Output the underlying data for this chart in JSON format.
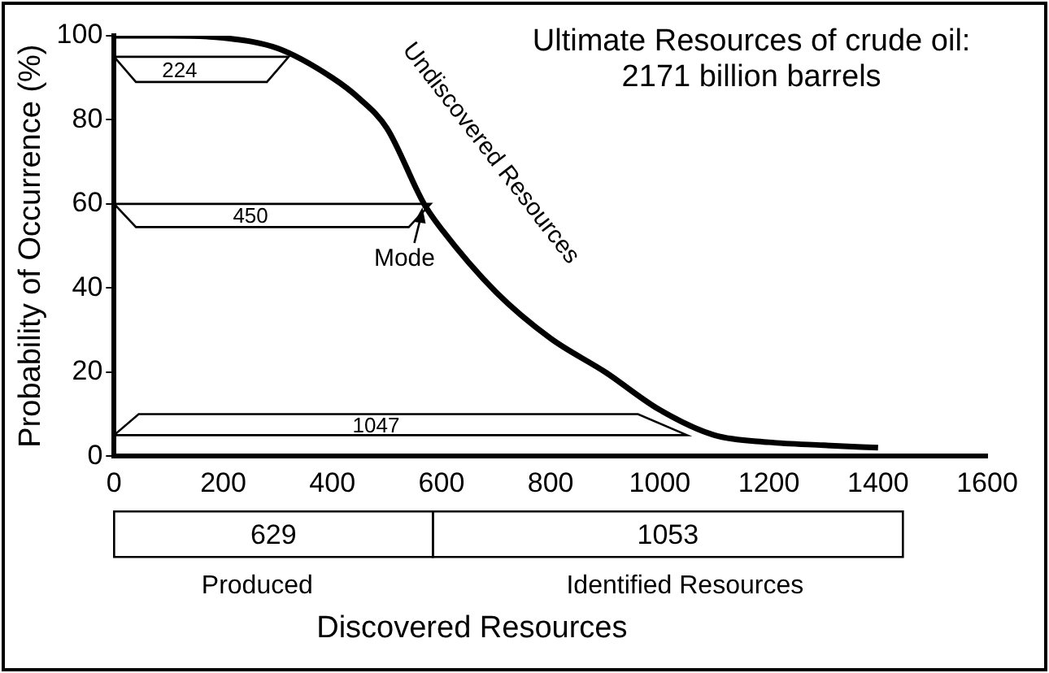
{
  "chart_data": {
    "type": "line",
    "title": "Ultimate Resources of crude oil:",
    "subtitle": "2171 billion barrels",
    "ylabel": "Probability of Occurrence (%)",
    "xlabel": "Discovered Resources",
    "x": [
      0,
      100,
      200,
      300,
      400,
      450,
      500,
      568,
      600,
      700,
      800,
      900,
      1000,
      1100,
      1200,
      1300,
      1400
    ],
    "series": [
      {
        "color": "#000000",
        "values": [
          100,
          100,
          99.5,
          97,
          90,
          85,
          78,
          60,
          54,
          39,
          28,
          20,
          11,
          5,
          3.3,
          2.6,
          2
        ]
      }
    ],
    "xlim": [
      0,
      1600
    ],
    "xticks": [
      0,
      200,
      400,
      600,
      800,
      1000,
      1200,
      1400,
      1600
    ],
    "ylim": [
      0,
      100
    ],
    "yticks": [
      0,
      20,
      40,
      60,
      80,
      100
    ],
    "grid": false,
    "legend": false,
    "marker": "none",
    "line_style": "solid",
    "annotations": [
      "224",
      "450",
      "1047",
      {
        "text": "Mode",
        "x": 568,
        "y": 60
      },
      "Undiscovered Resources",
      "629",
      "1053",
      "Produced",
      "Identified Resources"
    ]
  }
}
